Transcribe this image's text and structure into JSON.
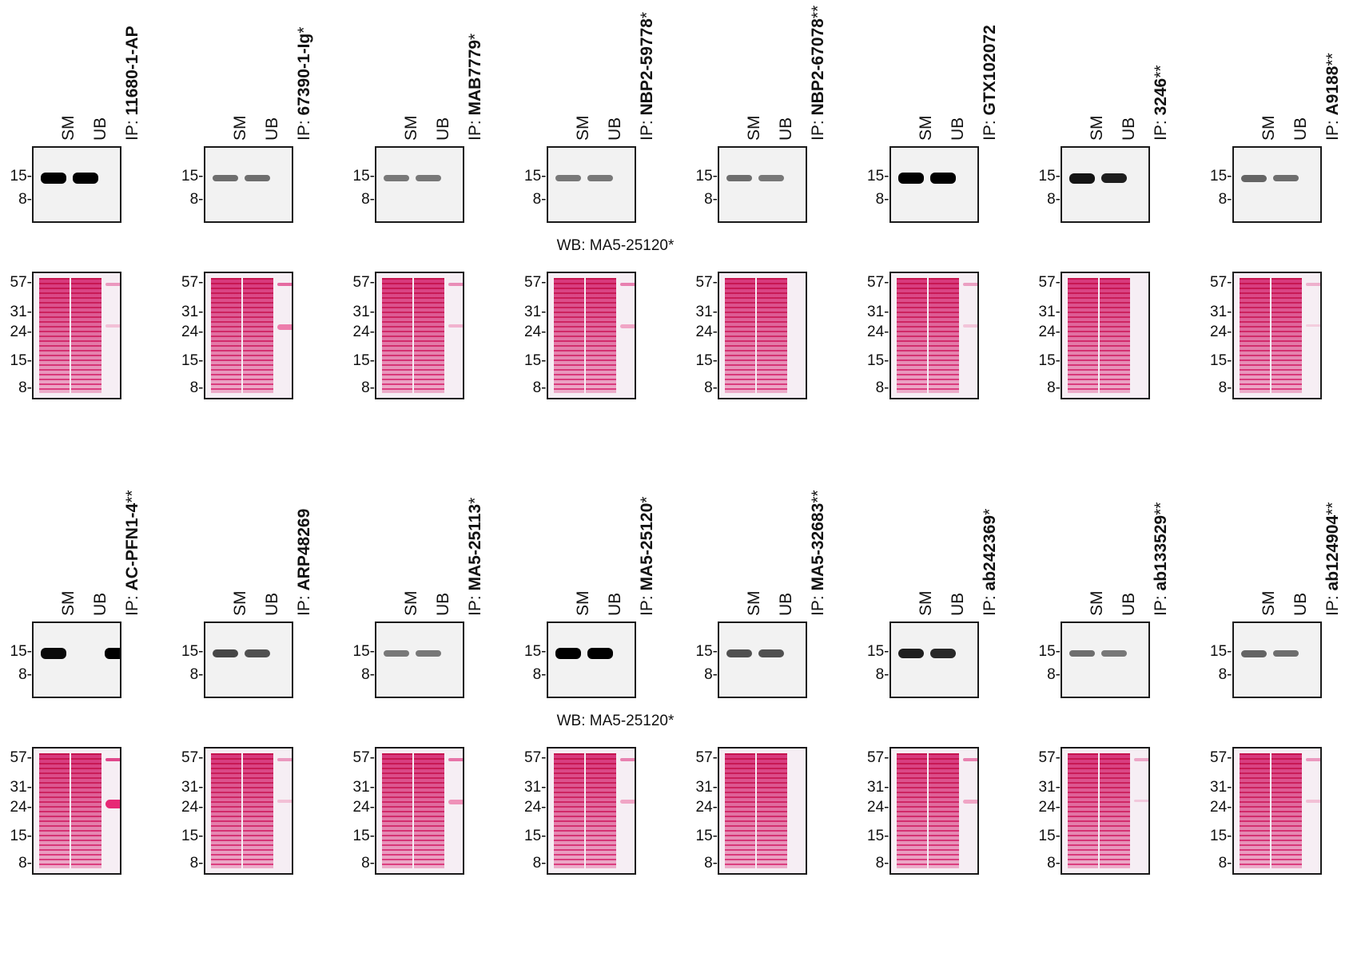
{
  "lanes": [
    "SM",
    "UB",
    "IP: "
  ],
  "wb_caption": "WB: MA5-25120*",
  "wb_markers": [
    "15-",
    "8-"
  ],
  "stain_markers": [
    "57-",
    "31-",
    "24-",
    "15-",
    "8-"
  ],
  "rows": [
    {
      "panels": [
        {
          "ip": "11680-1-AP",
          "mark": "",
          "wb": {
            "sm": 1.0,
            "ub": 1.0,
            "ip": 0.0
          },
          "stain_ip": 0.3
        },
        {
          "ip": "67390-1-Ig",
          "mark": "*",
          "wb": {
            "sm": 0.45,
            "ub": 0.45,
            "ip": 0.0
          },
          "stain_ip": 0.7
        },
        {
          "ip": "MAB7779",
          "mark": "*",
          "wb": {
            "sm": 0.4,
            "ub": 0.4,
            "ip": 0.0
          },
          "stain_ip": 0.4
        },
        {
          "ip": "NBP2-59778",
          "mark": "*",
          "wb": {
            "sm": 0.4,
            "ub": 0.4,
            "ip": 0.0
          },
          "stain_ip": 0.5
        },
        {
          "ip": "NBP2-67078",
          "mark": "**",
          "wb": {
            "sm": 0.45,
            "ub": 0.4,
            "ip": 0.0
          },
          "stain_ip": 0.0
        },
        {
          "ip": "GTX102072",
          "mark": "",
          "wb": {
            "sm": 1.0,
            "ub": 1.0,
            "ip": 0.0
          },
          "stain_ip": 0.25
        },
        {
          "ip": "3246",
          "mark": "**",
          "wb": {
            "sm": 0.9,
            "ub": 0.85,
            "ip": 0.0
          },
          "stain_ip": 0.0
        },
        {
          "ip": "A9188",
          "mark": "**",
          "wb": {
            "sm": 0.5,
            "ub": 0.45,
            "ip": 0.0
          },
          "stain_ip": 0.1
        }
      ]
    },
    {
      "panels": [
        {
          "ip": "AC-PFN1-4",
          "mark": "**",
          "wb": {
            "sm": 0.95,
            "ub": 0.0,
            "ip": 1.0
          },
          "stain_ip": 1.0
        },
        {
          "ip": "ARP48269",
          "mark": "",
          "wb": {
            "sm": 0.65,
            "ub": 0.6,
            "ip": 0.0
          },
          "stain_ip": 0.3
        },
        {
          "ip": "MA5-25113",
          "mark": "*",
          "wb": {
            "sm": 0.4,
            "ub": 0.4,
            "ip": 0.0
          },
          "stain_ip": 0.6
        },
        {
          "ip": "MA5-25120",
          "mark": "*",
          "wb": {
            "sm": 1.0,
            "ub": 1.0,
            "ip": 0.0
          },
          "stain_ip": 0.5
        },
        {
          "ip": "MA5-32683",
          "mark": "**",
          "wb": {
            "sm": 0.6,
            "ub": 0.6,
            "ip": 0.0
          },
          "stain_ip": 0.0
        },
        {
          "ip": "ab242369",
          "mark": "*",
          "wb": {
            "sm": 0.85,
            "ub": 0.8,
            "ip": 0.0
          },
          "stain_ip": 0.5
        },
        {
          "ip": "ab133529",
          "mark": "**",
          "wb": {
            "sm": 0.45,
            "ub": 0.4,
            "ip": 0.0
          },
          "stain_ip": 0.2
        },
        {
          "ip": "ab124904",
          "mark": "**",
          "wb": {
            "sm": 0.5,
            "ub": 0.45,
            "ip": 0.0
          },
          "stain_ip": 0.3
        }
      ]
    }
  ]
}
